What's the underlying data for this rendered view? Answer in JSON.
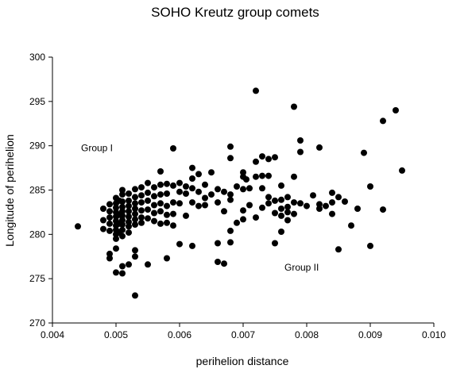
{
  "chart_data": {
    "type": "scatter",
    "title": "SOHO Kreutz group comets",
    "xlabel": "perihelion distance",
    "ylabel": "Longitude of perihelion",
    "xlim": [
      0.004,
      0.01
    ],
    "ylim": [
      270,
      300
    ],
    "xticks": [
      "0.004",
      "0.005",
      "0.006",
      "0.007",
      "0.008",
      "0.009",
      "0.010"
    ],
    "yticks": [
      "270",
      "275",
      "280",
      "285",
      "290",
      "295",
      "300"
    ],
    "grid": false,
    "legend": "none",
    "marker_color": "#000000",
    "annotations": [
      {
        "text": "Group I",
        "x": 0.00445,
        "y": 289.4
      },
      {
        "text": "Group II",
        "x": 0.00765,
        "y": 275.9
      }
    ],
    "points": [
      [
        0.0044,
        280.9
      ],
      [
        0.0048,
        282.9
      ],
      [
        0.0048,
        281.6
      ],
      [
        0.0048,
        280.6
      ],
      [
        0.0049,
        283.4
      ],
      [
        0.0049,
        282.6
      ],
      [
        0.0049,
        281.9
      ],
      [
        0.0049,
        281.2
      ],
      [
        0.0049,
        280.4
      ],
      [
        0.0049,
        277.8
      ],
      [
        0.0049,
        277.3
      ],
      [
        0.005,
        284.1
      ],
      [
        0.005,
        283.5
      ],
      [
        0.005,
        283.0
      ],
      [
        0.005,
        282.5
      ],
      [
        0.005,
        282.0
      ],
      [
        0.005,
        281.5
      ],
      [
        0.005,
        281.0
      ],
      [
        0.005,
        280.5
      ],
      [
        0.005,
        280.0
      ],
      [
        0.005,
        279.5
      ],
      [
        0.005,
        278.4
      ],
      [
        0.005,
        275.7
      ],
      [
        0.00505,
        283.8
      ],
      [
        0.00505,
        282.2
      ],
      [
        0.00505,
        281.2
      ],
      [
        0.00505,
        280.2
      ],
      [
        0.0051,
        285.0
      ],
      [
        0.0051,
        284.5
      ],
      [
        0.0051,
        283.7
      ],
      [
        0.0051,
        283.1
      ],
      [
        0.0051,
        282.6
      ],
      [
        0.0051,
        282.1
      ],
      [
        0.0051,
        281.6
      ],
      [
        0.0051,
        281.1
      ],
      [
        0.0051,
        280.5
      ],
      [
        0.0051,
        279.8
      ],
      [
        0.0051,
        276.4
      ],
      [
        0.0051,
        275.6
      ],
      [
        0.0052,
        284.6
      ],
      [
        0.0052,
        283.8
      ],
      [
        0.0052,
        283.2
      ],
      [
        0.0052,
        282.6
      ],
      [
        0.0052,
        282.0
      ],
      [
        0.0052,
        281.4
      ],
      [
        0.0052,
        280.9
      ],
      [
        0.0052,
        280.2
      ],
      [
        0.0052,
        276.6
      ],
      [
        0.0053,
        285.1
      ],
      [
        0.0053,
        284.2
      ],
      [
        0.0053,
        283.5
      ],
      [
        0.0053,
        282.9
      ],
      [
        0.0053,
        282.3
      ],
      [
        0.0053,
        281.7
      ],
      [
        0.0053,
        281.1
      ],
      [
        0.0053,
        278.2
      ],
      [
        0.0053,
        277.5
      ],
      [
        0.0053,
        273.1
      ],
      [
        0.0054,
        285.3
      ],
      [
        0.0054,
        284.4
      ],
      [
        0.0054,
        283.6
      ],
      [
        0.0054,
        282.7
      ],
      [
        0.0054,
        281.9
      ],
      [
        0.0054,
        281.3
      ],
      [
        0.0055,
        285.8
      ],
      [
        0.0055,
        284.7
      ],
      [
        0.0055,
        283.8
      ],
      [
        0.0055,
        282.8
      ],
      [
        0.0055,
        281.8
      ],
      [
        0.0055,
        276.6
      ],
      [
        0.0056,
        285.3
      ],
      [
        0.0056,
        284.3
      ],
      [
        0.0056,
        283.3
      ],
      [
        0.0056,
        282.4
      ],
      [
        0.0056,
        281.5
      ],
      [
        0.0057,
        287.1
      ],
      [
        0.0057,
        285.6
      ],
      [
        0.0057,
        284.5
      ],
      [
        0.0057,
        283.5
      ],
      [
        0.0057,
        282.6
      ],
      [
        0.0057,
        281.2
      ],
      [
        0.0058,
        285.7
      ],
      [
        0.0058,
        284.6
      ],
      [
        0.0058,
        283.2
      ],
      [
        0.0058,
        282.2
      ],
      [
        0.0058,
        281.3
      ],
      [
        0.0058,
        277.3
      ],
      [
        0.0059,
        289.7
      ],
      [
        0.0059,
        285.5
      ],
      [
        0.0059,
        283.6
      ],
      [
        0.0059,
        282.3
      ],
      [
        0.0059,
        281.0
      ],
      [
        0.006,
        285.8
      ],
      [
        0.006,
        284.8
      ],
      [
        0.006,
        283.5
      ],
      [
        0.006,
        278.9
      ],
      [
        0.0061,
        285.4
      ],
      [
        0.0061,
        284.6
      ],
      [
        0.0061,
        282.1
      ],
      [
        0.0062,
        287.5
      ],
      [
        0.0062,
        286.3
      ],
      [
        0.0062,
        285.2
      ],
      [
        0.0062,
        283.6
      ],
      [
        0.0062,
        278.7
      ],
      [
        0.0063,
        286.8
      ],
      [
        0.0063,
        284.8
      ],
      [
        0.0063,
        283.2
      ],
      [
        0.0064,
        285.6
      ],
      [
        0.0064,
        284.1
      ],
      [
        0.0064,
        283.3
      ],
      [
        0.0065,
        287.0
      ],
      [
        0.0065,
        284.5
      ],
      [
        0.0066,
        285.1
      ],
      [
        0.0066,
        283.6
      ],
      [
        0.0066,
        279.0
      ],
      [
        0.0066,
        276.9
      ],
      [
        0.0067,
        284.8
      ],
      [
        0.0067,
        282.6
      ],
      [
        0.0067,
        276.7
      ],
      [
        0.0068,
        289.9
      ],
      [
        0.0068,
        288.6
      ],
      [
        0.0068,
        284.5
      ],
      [
        0.0068,
        283.9
      ],
      [
        0.0068,
        280.4
      ],
      [
        0.0068,
        279.1
      ],
      [
        0.0069,
        285.4
      ],
      [
        0.0069,
        281.3
      ],
      [
        0.007,
        287.0
      ],
      [
        0.007,
        286.5
      ],
      [
        0.007,
        285.1
      ],
      [
        0.007,
        282.7
      ],
      [
        0.007,
        281.7
      ],
      [
        0.00705,
        286.2
      ],
      [
        0.0071,
        285.2
      ],
      [
        0.0071,
        283.3
      ],
      [
        0.0072,
        296.2
      ],
      [
        0.0072,
        288.2
      ],
      [
        0.0072,
        286.5
      ],
      [
        0.0072,
        281.9
      ],
      [
        0.0073,
        288.8
      ],
      [
        0.0073,
        286.6
      ],
      [
        0.0073,
        285.2
      ],
      [
        0.0073,
        283.0
      ],
      [
        0.0074,
        288.5
      ],
      [
        0.0074,
        286.6
      ],
      [
        0.0074,
        284.2
      ],
      [
        0.0074,
        283.5
      ],
      [
        0.0075,
        288.7
      ],
      [
        0.0075,
        283.8
      ],
      [
        0.0075,
        282.4
      ],
      [
        0.0075,
        279.0
      ],
      [
        0.0076,
        285.5
      ],
      [
        0.0076,
        283.9
      ],
      [
        0.0076,
        282.9
      ],
      [
        0.0076,
        282.1
      ],
      [
        0.0076,
        280.3
      ],
      [
        0.0077,
        284.2
      ],
      [
        0.0077,
        283.1
      ],
      [
        0.0077,
        282.5
      ],
      [
        0.0077,
        281.6
      ],
      [
        0.0078,
        294.4
      ],
      [
        0.0078,
        286.5
      ],
      [
        0.0078,
        283.6
      ],
      [
        0.0078,
        282.3
      ],
      [
        0.0079,
        290.6
      ],
      [
        0.0079,
        289.3
      ],
      [
        0.0079,
        283.5
      ],
      [
        0.008,
        283.2
      ],
      [
        0.0081,
        284.4
      ],
      [
        0.0082,
        289.8
      ],
      [
        0.0082,
        283.4
      ],
      [
        0.0082,
        282.9
      ],
      [
        0.0083,
        283.2
      ],
      [
        0.0084,
        284.7
      ],
      [
        0.0084,
        283.6
      ],
      [
        0.0084,
        282.3
      ],
      [
        0.0085,
        284.2
      ],
      [
        0.0085,
        278.3
      ],
      [
        0.0086,
        283.7
      ],
      [
        0.0087,
        281.0
      ],
      [
        0.0088,
        282.9
      ],
      [
        0.0089,
        289.2
      ],
      [
        0.009,
        285.4
      ],
      [
        0.009,
        278.7
      ],
      [
        0.0092,
        292.8
      ],
      [
        0.0092,
        282.8
      ],
      [
        0.0094,
        294.0
      ],
      [
        0.0095,
        287.2
      ]
    ]
  }
}
